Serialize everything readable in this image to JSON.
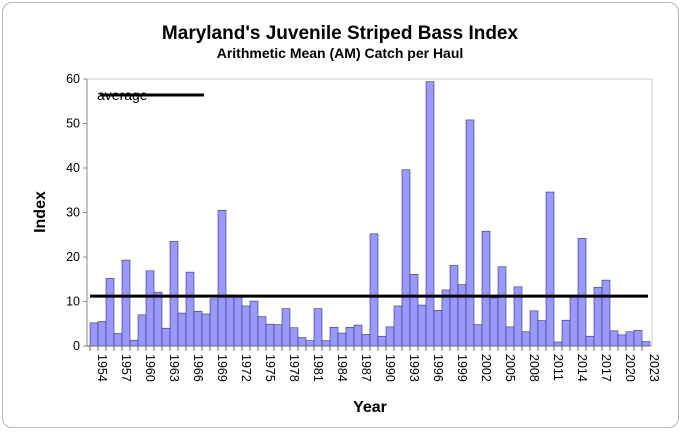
{
  "chart_data": {
    "type": "bar",
    "title": "Maryland's Juvenile Striped Bass Index",
    "subtitle": "Arithmetic Mean (AM) Catch per Haul",
    "xlabel": "Year",
    "ylabel": "Index",
    "ylim": [
      0,
      60
    ],
    "yticks": [
      0,
      10,
      20,
      30,
      40,
      50,
      60
    ],
    "grid": false,
    "legend": {
      "position": "top-left",
      "label": "average"
    },
    "bar_color": "#9999ff",
    "bar_edge_color": "#333366",
    "average": 11.2,
    "categories": [
      1954,
      1955,
      1956,
      1957,
      1958,
      1959,
      1960,
      1961,
      1962,
      1963,
      1964,
      1965,
      1966,
      1967,
      1968,
      1969,
      1970,
      1971,
      1972,
      1973,
      1974,
      1975,
      1976,
      1977,
      1978,
      1979,
      1980,
      1981,
      1982,
      1983,
      1984,
      1985,
      1986,
      1987,
      1988,
      1989,
      1990,
      1991,
      1992,
      1993,
      1994,
      1995,
      1996,
      1997,
      1998,
      1999,
      2000,
      2001,
      2002,
      2003,
      2004,
      2005,
      2006,
      2007,
      2008,
      2009,
      2010,
      2011,
      2012,
      2013,
      2014,
      2015,
      2016,
      2017,
      2018,
      2019,
      2020,
      2021,
      2022,
      2023
    ],
    "xtick_labels": [
      "1954",
      "1957",
      "1960",
      "1963",
      "1966",
      "1969",
      "1972",
      "1975",
      "1978",
      "1981",
      "1984",
      "1987",
      "1990",
      "1993",
      "1996",
      "1999",
      "2002",
      "2005",
      "2008",
      "2011",
      "2014",
      "2017",
      "2020",
      "2023"
    ],
    "values": [
      5.2,
      5.5,
      15.2,
      2.8,
      19.3,
      1.3,
      7.0,
      16.9,
      12.1,
      4.0,
      23.5,
      7.4,
      16.6,
      7.8,
      7.2,
      10.6,
      30.5,
      11.5,
      11.1,
      9.0,
      10.1,
      6.6,
      4.9,
      4.8,
      8.4,
      4.1,
      1.9,
      1.2,
      8.4,
      1.2,
      4.2,
      2.9,
      4.2,
      4.7,
      2.6,
      25.2,
      2.2,
      4.3,
      9.0,
      39.6,
      16.1,
      9.2,
      59.4,
      8.0,
      12.6,
      18.1,
      13.8,
      50.8,
      4.8,
      25.8,
      10.8,
      17.8,
      4.3,
      13.3,
      3.2,
      7.9,
      5.7,
      34.6,
      0.9,
      5.8,
      11.0,
      24.2,
      2.2,
      13.2,
      14.8,
      3.4,
      2.5,
      3.2,
      3.5,
      1.0
    ]
  }
}
